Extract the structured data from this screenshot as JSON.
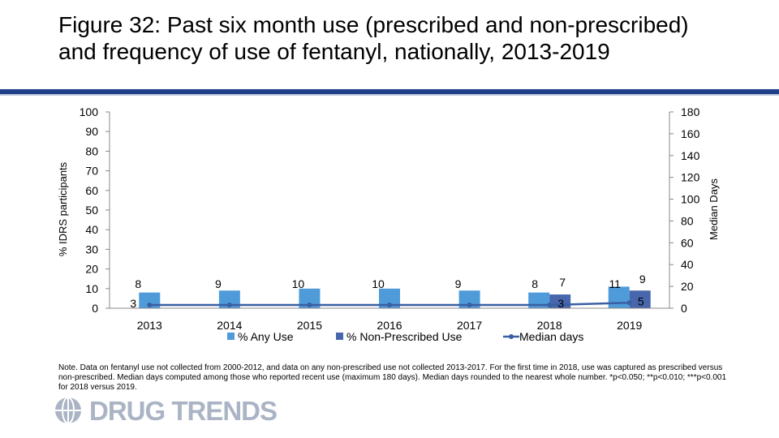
{
  "title": "Figure 32: Past six month use (prescribed and non-prescribed) and frequency of use of fentanyl, nationally, 2013-2019",
  "chart_data": {
    "type": "bar",
    "categories": [
      "2013",
      "2014",
      "2015",
      "2016",
      "2017",
      "2018",
      "2019"
    ],
    "series": [
      {
        "name": "% Any Use",
        "axis": "left",
        "kind": "bar",
        "color": "#4f9bd9",
        "values": [
          8,
          9,
          10,
          10,
          9,
          8,
          11
        ]
      },
      {
        "name": "% Non-Prescribed Use",
        "axis": "left",
        "kind": "bar",
        "color": "#4766ac",
        "values": [
          null,
          null,
          null,
          null,
          null,
          7,
          9
        ]
      },
      {
        "name": "Median days",
        "axis": "right",
        "kind": "line",
        "color": "#3a5fa3",
        "values": [
          3,
          null,
          null,
          null,
          null,
          3,
          5
        ]
      }
    ],
    "ylabel": "% IDRS participants",
    "y2label": "Median Days",
    "ylim": [
      0,
      100
    ],
    "y2lim": [
      0,
      180
    ],
    "yticks": [
      "0",
      "10",
      "20",
      "30",
      "40",
      "50",
      "60",
      "70",
      "80",
      "90",
      "100"
    ],
    "y2ticks": [
      "0",
      "20",
      "40",
      "60",
      "80",
      "100",
      "120",
      "140",
      "160",
      "180"
    ],
    "legend_position": "bottom"
  },
  "note": "Note. Data on fentanyl use not collected from 2000-2012, and data on any non-prescribed use not collected 2013-2017. For the first time in 2018, use was captured as prescribed versus non-prescribed. Median days computed among those who reported recent use (maximum 180 days). Median days rounded to the nearest whole number. *p<0.050; **p<0.010; ***p<0.001 for 2018 versus 2019.",
  "logo": {
    "text": "DRUG TRENDS",
    "icon": "globe-icon"
  }
}
